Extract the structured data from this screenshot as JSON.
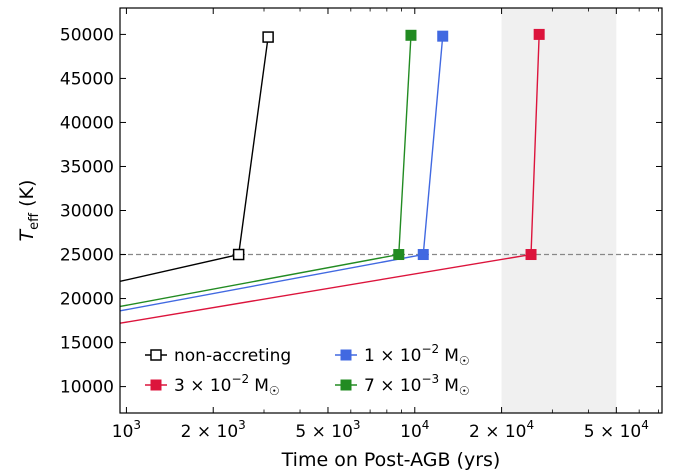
{
  "chart_data": {
    "type": "line",
    "xscale": "log",
    "xlabel": "Time on Post-AGB (yrs)",
    "ylabel_main": "T",
    "ylabel_sub": "eff",
    "ylabel_unit": "(K)",
    "xlim": [
      950,
      72000
    ],
    "ylim": [
      7000,
      53000
    ],
    "yticks": [
      10000,
      15000,
      20000,
      25000,
      30000,
      35000,
      40000,
      45000,
      50000
    ],
    "xticks_major": [
      {
        "value": 1000,
        "base": "10",
        "exp": "3"
      },
      {
        "value": 2000,
        "base": "2 × 10",
        "exp": "3"
      },
      {
        "value": 5000,
        "base": "5 × 10",
        "exp": "3"
      },
      {
        "value": 10000,
        "base": "10",
        "exp": "4"
      },
      {
        "value": 20000,
        "base": "2 × 10",
        "exp": "4"
      },
      {
        "value": 50000,
        "base": "5 × 10",
        "exp": "4"
      }
    ],
    "xticks_minor": [
      3000,
      4000,
      6000,
      7000,
      8000,
      9000,
      30000,
      40000,
      60000,
      70000
    ],
    "shaded_region_x": [
      20000,
      50000
    ],
    "shaded_color": "#f0f0f0",
    "hline_y": 25000,
    "hline_color": "#888888",
    "series": [
      {
        "name": "non-accreting",
        "color": "#000000",
        "marker": "open-square",
        "x": [
          950,
          2450,
          3100
        ],
        "y": [
          21950,
          25000,
          49700
        ]
      },
      {
        "name": "1 × 10⁻² M☉",
        "name_base": "1 × 10",
        "name_exp": "−2",
        "name_unit": "M",
        "color": "#4169e1",
        "marker": "filled-square",
        "x": [
          950,
          10700,
          12500
        ],
        "y": [
          18600,
          25000,
          49800
        ]
      },
      {
        "name": "3 × 10⁻² M☉",
        "name_base": "3 × 10",
        "name_exp": "−2",
        "name_unit": "M",
        "color": "#dc143c",
        "marker": "filled-square",
        "x": [
          950,
          25300,
          27000
        ],
        "y": [
          17200,
          25000,
          50000
        ]
      },
      {
        "name": "7 × 10⁻³ M☉",
        "name_base": "7 × 10",
        "name_exp": "−3",
        "name_unit": "M",
        "color": "#228b22",
        "marker": "filled-square",
        "x": [
          950,
          8800,
          9700
        ],
        "y": [
          19100,
          25000,
          49900
        ]
      }
    ],
    "legend_position": "lower-left"
  }
}
